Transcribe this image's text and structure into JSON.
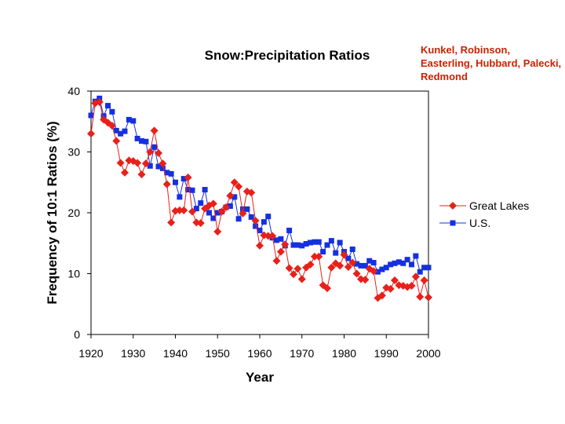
{
  "chart_data": {
    "type": "line",
    "title": "Snow:Precipitation Ratios",
    "xlabel": "Year",
    "ylabel": "Frequency of 10:1 Ratios (%)",
    "xlim": [
      1920,
      2000
    ],
    "ylim": [
      0,
      40
    ],
    "xticks": [
      1920,
      1930,
      1940,
      1950,
      1960,
      1970,
      1980,
      1990,
      2000
    ],
    "yticks": [
      0,
      10,
      20,
      30,
      40
    ],
    "legend_position": "right",
    "x": [
      1920,
      1921,
      1922,
      1923,
      1924,
      1925,
      1926,
      1927,
      1928,
      1929,
      1930,
      1931,
      1932,
      1933,
      1934,
      1935,
      1936,
      1937,
      1938,
      1939,
      1940,
      1941,
      1942,
      1943,
      1944,
      1945,
      1946,
      1947,
      1948,
      1949,
      1950,
      1951,
      1952,
      1953,
      1954,
      1955,
      1956,
      1957,
      1958,
      1959,
      1960,
      1961,
      1962,
      1963,
      1964,
      1965,
      1966,
      1967,
      1968,
      1969,
      1970,
      1971,
      1972,
      1973,
      1974,
      1975,
      1976,
      1977,
      1978,
      1979,
      1980,
      1981,
      1982,
      1983,
      1984,
      1985,
      1986,
      1987,
      1988,
      1989,
      1990,
      1991,
      1992,
      1993,
      1994,
      1995,
      1996,
      1997,
      1998,
      1999,
      2000
    ],
    "series": [
      {
        "name": "Great Lakes",
        "color": "#e8201a",
        "marker": "diamond",
        "values": [
          33.0,
          38.0,
          38.2,
          35.3,
          34.8,
          34.3,
          31.8,
          28.2,
          26.6,
          28.6,
          28.5,
          28.2,
          26.3,
          28.1,
          30.0,
          33.5,
          29.8,
          28.1,
          24.7,
          18.4,
          20.3,
          20.4,
          20.4,
          25.8,
          20.2,
          18.4,
          18.3,
          20.7,
          21.2,
          21.5,
          16.9,
          20.2,
          20.9,
          22.8,
          25.0,
          24.3,
          19.9,
          23.5,
          23.3,
          18.7,
          14.6,
          16.3,
          16.2,
          16.2,
          12.1,
          13.6,
          14.8,
          10.9,
          9.9,
          10.8,
          9.1,
          11.0,
          11.5,
          12.8,
          12.8,
          8.1,
          7.6,
          11.0,
          11.7,
          11.3,
          13.1,
          11.1,
          11.8,
          10.0,
          9.1,
          9.0,
          10.8,
          10.4,
          6.0,
          6.4,
          7.7,
          7.5,
          8.9,
          8.1,
          8.0,
          7.8,
          8.0,
          9.5,
          6.2,
          8.9,
          6.1
        ]
      },
      {
        "name": "U.S.",
        "color": "#1530e0",
        "marker": "square",
        "values": [
          36.0,
          38.3,
          38.8,
          35.9,
          37.6,
          36.6,
          33.5,
          33.0,
          33.4,
          35.3,
          35.1,
          32.2,
          31.8,
          31.7,
          27.7,
          30.8,
          27.6,
          27.3,
          26.6,
          26.4,
          25.0,
          22.6,
          25.6,
          23.8,
          23.7,
          20.7,
          21.6,
          23.8,
          20.0,
          19.1,
          20.0,
          20.2,
          20.9,
          21.1,
          22.6,
          19.0,
          20.6,
          20.6,
          19.3,
          17.8,
          17.1,
          18.5,
          19.4,
          15.9,
          15.5,
          15.7,
          14.6,
          17.1,
          14.7,
          14.7,
          14.6,
          14.9,
          15.1,
          15.2,
          15.2,
          13.6,
          14.7,
          15.4,
          13.4,
          15.1,
          13.6,
          12.5,
          14.0,
          11.6,
          11.3,
          11.3,
          12.1,
          11.8,
          10.3,
          10.7,
          11.0,
          11.5,
          11.7,
          11.9,
          11.7,
          12.3,
          11.5,
          12.9,
          10.3,
          11.0,
          11.0
        ]
      }
    ]
  },
  "authors_note": "Kunkel, Robinson, Easterling, Hubbard, Palecki, Redmond"
}
